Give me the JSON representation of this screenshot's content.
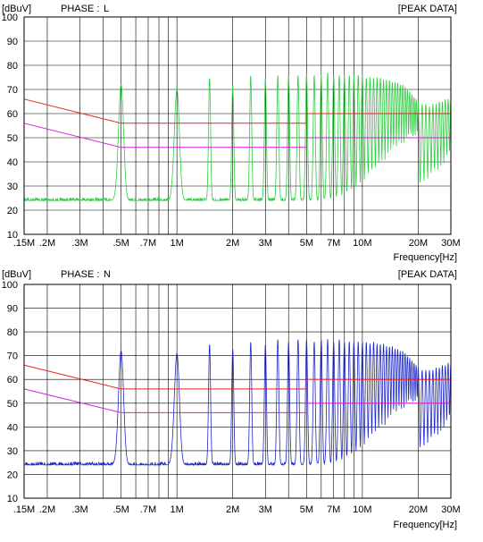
{
  "chart_data": [
    {
      "type": "line",
      "header_left": "[dBuV]",
      "phase_label": "PHASE :",
      "phase_value": "L",
      "phase_color": "#2ecc40",
      "header_right": "[PEAK DATA]",
      "xlabel": "Frequency[Hz]",
      "x_scale": "log",
      "xlim": [
        0.15,
        30
      ],
      "ylim": [
        10,
        100
      ],
      "grid": true,
      "y_ticks": [
        10,
        20,
        30,
        40,
        50,
        60,
        70,
        80,
        90,
        100
      ],
      "x_ticks": [
        {
          "v": 0.15,
          "label": ".15M"
        },
        {
          "v": 0.2,
          "label": ".2M"
        },
        {
          "v": 0.3,
          "label": ".3M"
        },
        {
          "v": 0.5,
          "label": ".5M"
        },
        {
          "v": 0.7,
          "label": ".7M"
        },
        {
          "v": 1,
          "label": "1M"
        },
        {
          "v": 2,
          "label": "2M"
        },
        {
          "v": 3,
          "label": "3M"
        },
        {
          "v": 5,
          "label": "5M"
        },
        {
          "v": 7,
          "label": "7M"
        },
        {
          "v": 10,
          "label": "10M"
        },
        {
          "v": 20,
          "label": "20M"
        },
        {
          "v": 30,
          "label": "30M"
        }
      ],
      "series": [
        {
          "role": "measurement",
          "color": "#2ecc40",
          "noise_floor": 24,
          "peaks": [
            [
              0.5,
              72
            ],
            [
              1.0,
              70
            ],
            [
              1.5,
              75
            ],
            [
              2.0,
              72
            ],
            [
              2.5,
              76
            ],
            [
              3.0,
              75
            ],
            [
              3.5,
              76
            ],
            [
              4.0,
              76
            ],
            [
              4.5,
              76
            ],
            [
              5.0,
              77
            ],
            [
              5.5,
              76
            ],
            [
              6.0,
              76
            ],
            [
              6.5,
              77
            ],
            [
              7.0,
              76
            ],
            [
              7.5,
              76
            ],
            [
              8.0,
              76
            ],
            [
              8.5,
              76
            ],
            [
              9.0,
              76
            ],
            [
              9.5,
              76
            ],
            [
              10.0,
              76
            ],
            [
              10.5,
              75
            ],
            [
              11.0,
              75
            ],
            [
              11.5,
              75
            ],
            [
              12.0,
              75
            ],
            [
              12.5,
              75
            ],
            [
              13.0,
              74
            ],
            [
              13.5,
              74
            ],
            [
              14.0,
              74
            ],
            [
              14.5,
              73
            ],
            [
              15.0,
              73
            ],
            [
              15.5,
              73
            ],
            [
              16.0,
              72
            ],
            [
              16.5,
              72
            ],
            [
              17.0,
              71
            ],
            [
              17.5,
              70
            ],
            [
              18.0,
              69
            ],
            [
              18.5,
              68
            ],
            [
              19.0,
              67
            ],
            [
              19.5,
              66
            ],
            [
              20.0,
              65
            ],
            [
              21.0,
              64
            ],
            [
              22.0,
              64
            ],
            [
              23.0,
              63
            ],
            [
              24.0,
              64
            ],
            [
              25.0,
              64
            ],
            [
              26.0,
              65
            ],
            [
              27.0,
              65
            ],
            [
              28.0,
              66
            ],
            [
              29.0,
              66
            ],
            [
              30.0,
              66
            ]
          ]
        },
        {
          "role": "limit-qp",
          "color": "#e8231d",
          "points": [
            [
              0.15,
              66
            ],
            [
              0.5,
              56
            ],
            [
              5,
              56
            ],
            [
              5,
              60
            ],
            [
              30,
              60
            ]
          ]
        },
        {
          "role": "limit-avg",
          "color": "#d51ed5",
          "points": [
            [
              0.15,
              56
            ],
            [
              0.5,
              46
            ],
            [
              5,
              46
            ],
            [
              5,
              50
            ],
            [
              30,
              50
            ]
          ]
        }
      ]
    },
    {
      "type": "line",
      "header_left": "[dBuV]",
      "phase_label": "PHASE :",
      "phase_value": "N",
      "phase_color": "#1e28c8",
      "header_right": "[PEAK DATA]",
      "xlabel": "Frequency[Hz]",
      "x_scale": "log",
      "xlim": [
        0.15,
        30
      ],
      "ylim": [
        10,
        100
      ],
      "grid": true,
      "y_ticks": [
        10,
        20,
        30,
        40,
        50,
        60,
        70,
        80,
        90,
        100
      ],
      "x_ticks": [
        {
          "v": 0.15,
          "label": ".15M"
        },
        {
          "v": 0.2,
          "label": ".2M"
        },
        {
          "v": 0.3,
          "label": ".3M"
        },
        {
          "v": 0.5,
          "label": ".5M"
        },
        {
          "v": 0.7,
          "label": ".7M"
        },
        {
          "v": 1,
          "label": "1M"
        },
        {
          "v": 2,
          "label": "2M"
        },
        {
          "v": 3,
          "label": "3M"
        },
        {
          "v": 5,
          "label": "5M"
        },
        {
          "v": 7,
          "label": "7M"
        },
        {
          "v": 10,
          "label": "10M"
        },
        {
          "v": 20,
          "label": "20M"
        },
        {
          "v": 30,
          "label": "30M"
        }
      ],
      "series": [
        {
          "role": "measurement",
          "color": "#1e28c8",
          "noise_floor": 24,
          "peaks": [
            [
              0.5,
              72
            ],
            [
              1.0,
              71
            ],
            [
              1.5,
              75
            ],
            [
              2.0,
              73
            ],
            [
              2.5,
              76
            ],
            [
              3.0,
              75
            ],
            [
              3.5,
              77
            ],
            [
              4.0,
              76
            ],
            [
              4.5,
              77
            ],
            [
              5.0,
              77
            ],
            [
              5.5,
              76
            ],
            [
              6.0,
              77
            ],
            [
              6.5,
              77
            ],
            [
              7.0,
              76
            ],
            [
              7.5,
              77
            ],
            [
              8.0,
              76
            ],
            [
              8.5,
              76
            ],
            [
              9.0,
              76
            ],
            [
              9.5,
              76
            ],
            [
              10.0,
              76
            ],
            [
              10.5,
              76
            ],
            [
              11.0,
              75
            ],
            [
              11.5,
              76
            ],
            [
              12.0,
              75
            ],
            [
              12.5,
              75
            ],
            [
              13.0,
              75
            ],
            [
              13.5,
              74
            ],
            [
              14.0,
              74
            ],
            [
              14.5,
              74
            ],
            [
              15.0,
              73
            ],
            [
              15.5,
              73
            ],
            [
              16.0,
              72
            ],
            [
              16.5,
              72
            ],
            [
              17.0,
              71
            ],
            [
              17.5,
              70
            ],
            [
              18.0,
              69
            ],
            [
              18.5,
              68
            ],
            [
              19.0,
              67
            ],
            [
              19.5,
              66
            ],
            [
              20.0,
              65
            ],
            [
              21.0,
              64
            ],
            [
              22.0,
              64
            ],
            [
              23.0,
              64
            ],
            [
              24.0,
              64
            ],
            [
              25.0,
              65
            ],
            [
              26.0,
              65
            ],
            [
              27.0,
              66
            ],
            [
              28.0,
              66
            ],
            [
              29.0,
              67
            ],
            [
              30.0,
              67
            ]
          ]
        },
        {
          "role": "limit-qp",
          "color": "#e8231d",
          "points": [
            [
              0.15,
              66
            ],
            [
              0.5,
              56
            ],
            [
              5,
              56
            ],
            [
              5,
              60
            ],
            [
              30,
              60
            ]
          ]
        },
        {
          "role": "limit-avg",
          "color": "#d51ed5",
          "points": [
            [
              0.15,
              56
            ],
            [
              0.5,
              46
            ],
            [
              5,
              46
            ],
            [
              5,
              50
            ],
            [
              30,
              50
            ]
          ]
        }
      ]
    }
  ]
}
